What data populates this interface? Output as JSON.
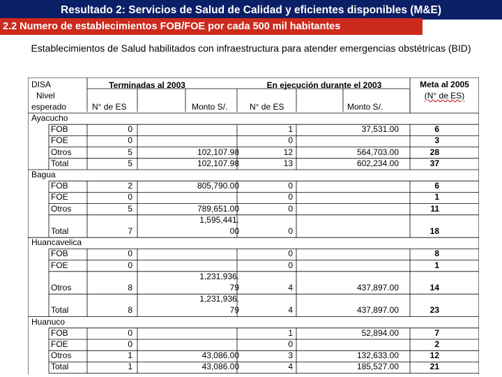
{
  "header": {
    "title": "Resultado 2: Servicios de Salud de Calidad y eficientes disponibles (M&E)",
    "subtitle": "2.2 Numero de establecimientos FOB/FOE por cada 500 mil habitantes"
  },
  "caption": "Establecimientos de Salud habilitados con infraestructura para atender emergencias obstétricas (BID)",
  "table": {
    "headers": {
      "disa": "DISA",
      "nivel": "Nivel",
      "esperado": "esperado",
      "terminadas": "Terminadas al 2003",
      "en_ejecucion": "En ejecución durante el 2003",
      "meta_1": "Meta al 2005",
      "meta_2": "(N° de ES)",
      "n_es_1": "N° de ES",
      "monto_1": "Monto S/.",
      "n_es_2": "N° de ES",
      "monto_2": "Monto S/."
    },
    "rows": [
      {
        "type": "group",
        "name": "Ayacucho"
      },
      {
        "type": "data",
        "label": "FOB",
        "t_es": "0",
        "t_monto": "",
        "e_es": "1",
        "e_monto": "37,531.00",
        "meta": "6"
      },
      {
        "type": "data",
        "label": "FOE",
        "t_es": "0",
        "t_monto": "",
        "e_es": "0",
        "e_monto": "",
        "meta": "3"
      },
      {
        "type": "data",
        "label": "Otros",
        "t_es": "5",
        "t_monto": "102,107.98",
        "e_es": "12",
        "e_monto": "564,703.00",
        "meta": "28"
      },
      {
        "type": "data",
        "label": "Total",
        "t_es": "5",
        "t_monto": "102,107.98",
        "e_es": "13",
        "e_monto": "602,234.00",
        "meta": "37"
      },
      {
        "type": "group",
        "name": "Bagua"
      },
      {
        "type": "data",
        "label": "FOB",
        "t_es": "2",
        "t_monto": "805,790.00",
        "e_es": "0",
        "e_monto": "",
        "meta": "6"
      },
      {
        "type": "data",
        "label": "FOE",
        "t_es": "0",
        "t_monto": "",
        "e_es": "0",
        "e_monto": "",
        "meta": "1"
      },
      {
        "type": "data",
        "label": "Otros",
        "t_es": "5",
        "t_monto": "789,651.00",
        "e_es": "0",
        "e_monto": "",
        "meta": "11"
      },
      {
        "type": "data2",
        "label": "Total",
        "t_es": "7",
        "t_monto_1": "1,595,441.",
        "t_monto_2": "00",
        "e_es": "0",
        "e_monto": "",
        "meta": "18"
      },
      {
        "type": "group",
        "name": "Huancavelica"
      },
      {
        "type": "data",
        "label": "FOB",
        "t_es": "0",
        "t_monto": "",
        "e_es": "0",
        "e_monto": "",
        "meta": "8"
      },
      {
        "type": "data",
        "label": "FOE",
        "t_es": "0",
        "t_monto": "",
        "e_es": "0",
        "e_monto": "",
        "meta": "1"
      },
      {
        "type": "data2",
        "label": "Otros",
        "t_es": "8",
        "t_monto_1": "1,231,936.",
        "t_monto_2": "79",
        "e_es": "4",
        "e_monto": "437,897.00",
        "meta": "14"
      },
      {
        "type": "data2",
        "label": "Total",
        "t_es": "8",
        "t_monto_1": "1,231,936.",
        "t_monto_2": "79",
        "e_es": "4",
        "e_monto": "437,897.00",
        "meta": "23"
      },
      {
        "type": "group",
        "name": "Huanuco"
      },
      {
        "type": "data",
        "label": "FOB",
        "t_es": "0",
        "t_monto": "",
        "e_es": "1",
        "e_monto": "52,894.00",
        "meta": "7"
      },
      {
        "type": "data",
        "label": "FOE",
        "t_es": "0",
        "t_monto": "",
        "e_es": "0",
        "e_monto": "",
        "meta": "2"
      },
      {
        "type": "data",
        "label": "Otros",
        "t_es": "1",
        "t_monto": "43,086.00",
        "e_es": "3",
        "e_monto": "132,633.00",
        "meta": "12"
      },
      {
        "type": "data",
        "label": "Total",
        "t_es": "1",
        "t_monto": "43,086.00",
        "e_es": "4",
        "e_monto": "185,527.00",
        "meta": "21"
      }
    ]
  },
  "colors": {
    "title_bg": "#0b1f66",
    "subtitle_bg": "#cc2a1c"
  }
}
